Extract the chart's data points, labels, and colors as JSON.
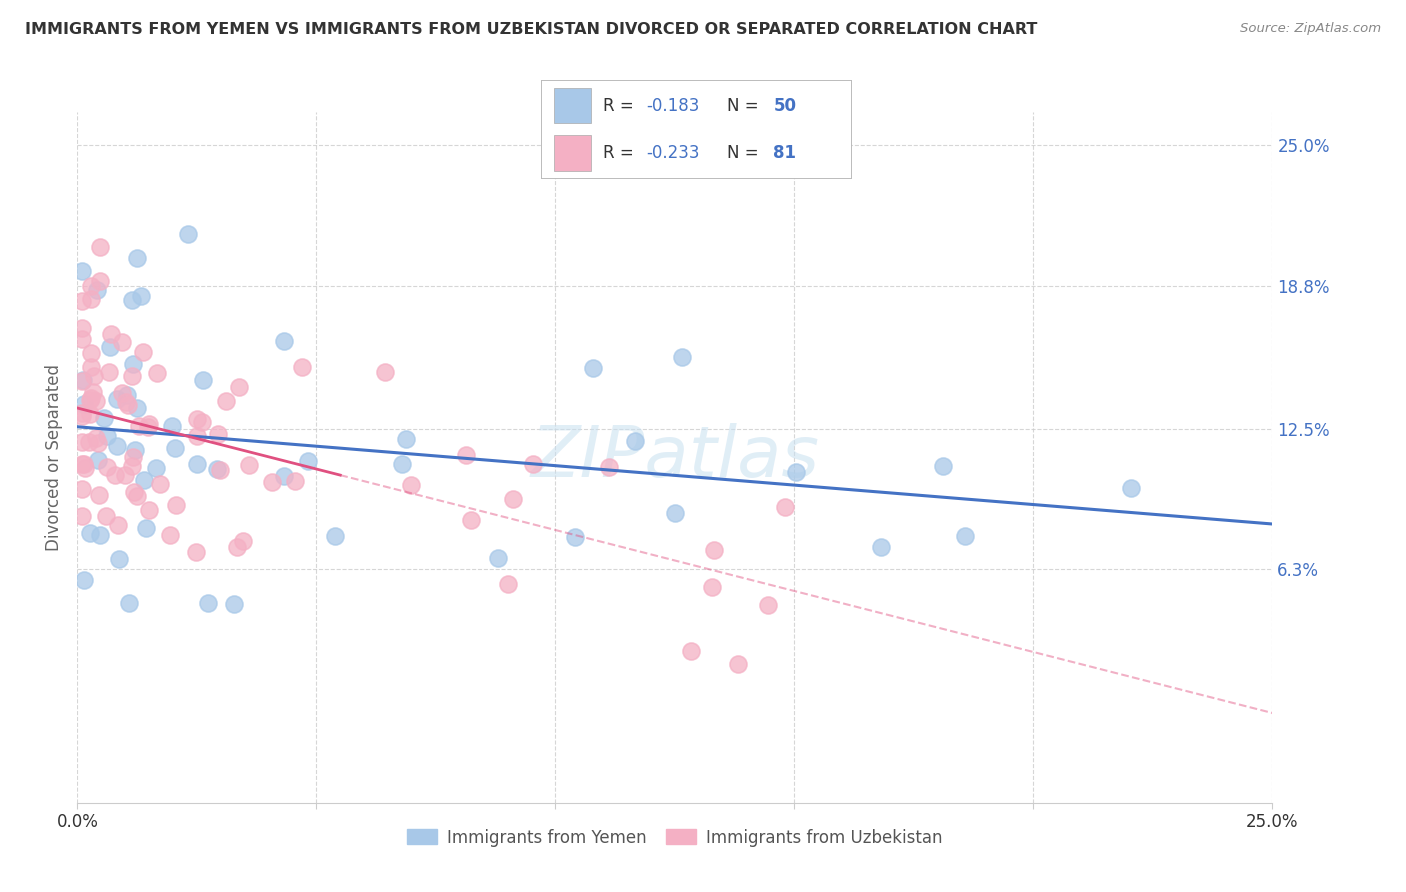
{
  "title": "IMMIGRANTS FROM YEMEN VS IMMIGRANTS FROM UZBEKISTAN DIVORCED OR SEPARATED CORRELATION CHART",
  "source": "Source: ZipAtlas.com",
  "ylabel": "Divorced or Separated",
  "xlim": [
    0.0,
    0.25
  ],
  "ylim": [
    -0.04,
    0.265
  ],
  "ytick_values": [
    0.063,
    0.125,
    0.188,
    0.25
  ],
  "ytick_labels": [
    "6.3%",
    "12.5%",
    "18.8%",
    "25.0%"
  ],
  "xtick_values": [
    0.0,
    0.05,
    0.1,
    0.15,
    0.2,
    0.25
  ],
  "xtick_labels": [
    "0.0%",
    "",
    "",
    "",
    "",
    "25.0%"
  ],
  "watermark": "ZIPatlas",
  "yemen_color": "#a8c8e8",
  "yemen_line_color": "#4472c4",
  "uzbekistan_color": "#f4b0c4",
  "uzbekistan_line_color": "#e05080",
  "legend_R_yemen": "-0.183",
  "legend_N_yemen": "50",
  "legend_R_uzbekistan": "-0.233",
  "legend_N_uzbekistan": "81",
  "legend_text_color": "#4472c4",
  "label_color": "#333333",
  "grid_color": "#cccccc",
  "ytick_color": "#4472c4",
  "xtick_color": "#333333",
  "source_color": "#888888"
}
